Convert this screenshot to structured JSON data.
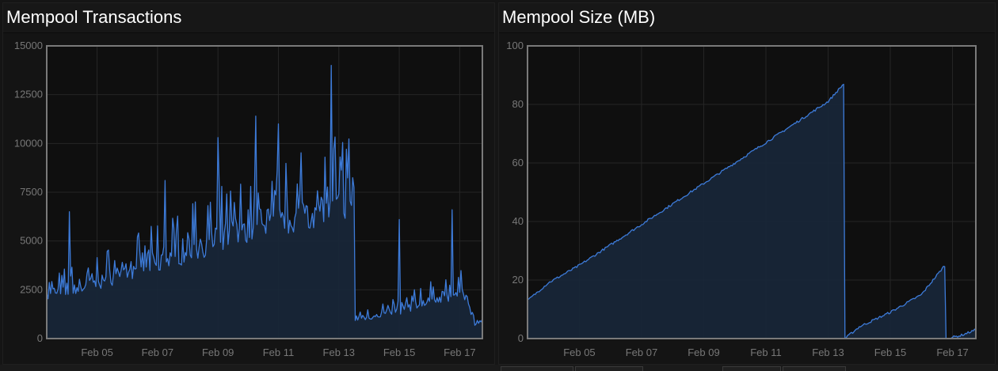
{
  "chart_data": [
    {
      "type": "area",
      "title": "Mempool Transactions",
      "xlabel": "",
      "ylabel": "",
      "ylim": [
        0,
        15000
      ],
      "yticks": [
        "0",
        "2500",
        "5000",
        "7500",
        "10000",
        "12500",
        "15000"
      ],
      "xlim": [
        "Feb 03 08:00",
        "Feb 17 18:00"
      ],
      "xticks": [
        "Feb 05",
        "Feb 07",
        "Feb 09",
        "Feb 11",
        "Feb 13",
        "Feb 15",
        "Feb 17"
      ],
      "grid": true,
      "color": "#3d7bd9",
      "series": [
        {
          "x": [
            "Feb 03 08:00",
            "Feb 04 00:00",
            "Feb 05 00:00",
            "Feb 06 00:00",
            "Feb 07 00:00",
            "Feb 08 00:00",
            "Feb 09 00:00",
            "Feb 10 00:00",
            "Feb 11 00:00",
            "Feb 12 00:00",
            "Feb 13 00:00",
            "Feb 13 12:00",
            "Feb 13 13:00",
            "Feb 14 00:00",
            "Feb 15 00:00",
            "Feb 16 00:00",
            "Feb 17 00:00",
            "Feb 17 06:00",
            "Feb 17 12:00",
            "Feb 17 18:00"
          ],
          "values": [
            2200,
            2400,
            2800,
            3400,
            3800,
            4400,
            5000,
            5600,
            6000,
            6300,
            6800,
            7200,
            1000,
            1100,
            1400,
            1900,
            2300,
            2000,
            700,
            1000
          ],
          "peaks": [
            {
              "x": "Feb 04 02:00",
              "y": 6500
            },
            {
              "x": "Feb 07 06:00",
              "y": 8100
            },
            {
              "x": "Feb 08 06:00",
              "y": 7000
            },
            {
              "x": "Feb 09 00:00",
              "y": 10300
            },
            {
              "x": "Feb 10 06:00",
              "y": 11400
            },
            {
              "x": "Feb 11 00:00",
              "y": 11000
            },
            {
              "x": "Feb 12 18:00",
              "y": 14000
            },
            {
              "x": "Feb 13 06:00",
              "y": 9700
            },
            {
              "x": "Feb 15 00:00",
              "y": 6100
            },
            {
              "x": "Feb 16 18:00",
              "y": 6600
            }
          ]
        }
      ]
    },
    {
      "type": "area",
      "title": "Mempool Size (MB)",
      "xlabel": "",
      "ylabel": "",
      "ylim": [
        0,
        100
      ],
      "yticks": [
        "0",
        "20",
        "40",
        "60",
        "80",
        "100"
      ],
      "xlim": [
        "Feb 03 08:00",
        "Feb 17 18:00"
      ],
      "xticks": [
        "Feb 05",
        "Feb 07",
        "Feb 09",
        "Feb 11",
        "Feb 13",
        "Feb 15",
        "Feb 17"
      ],
      "grid": true,
      "color": "#3d7bd9",
      "series": [
        {
          "x": [
            "Feb 03 08:00",
            "Feb 04 00:00",
            "Feb 05 00:00",
            "Feb 06 00:00",
            "Feb 07 00:00",
            "Feb 08 00:00",
            "Feb 09 00:00",
            "Feb 10 00:00",
            "Feb 11 00:00",
            "Feb 12 00:00",
            "Feb 13 00:00",
            "Feb 13 12:00",
            "Feb 13 13:00",
            "Feb 14 00:00",
            "Feb 15 00:00",
            "Feb 16 00:00",
            "Feb 16 18:00",
            "Feb 16 19:00",
            "Feb 17 06:00",
            "Feb 17 18:00"
          ],
          "values": [
            13,
            19,
            25,
            32,
            39,
            46,
            53,
            60,
            67,
            74,
            81,
            87,
            0,
            4,
            9,
            15,
            25,
            0,
            1,
            3
          ]
        }
      ]
    }
  ]
}
